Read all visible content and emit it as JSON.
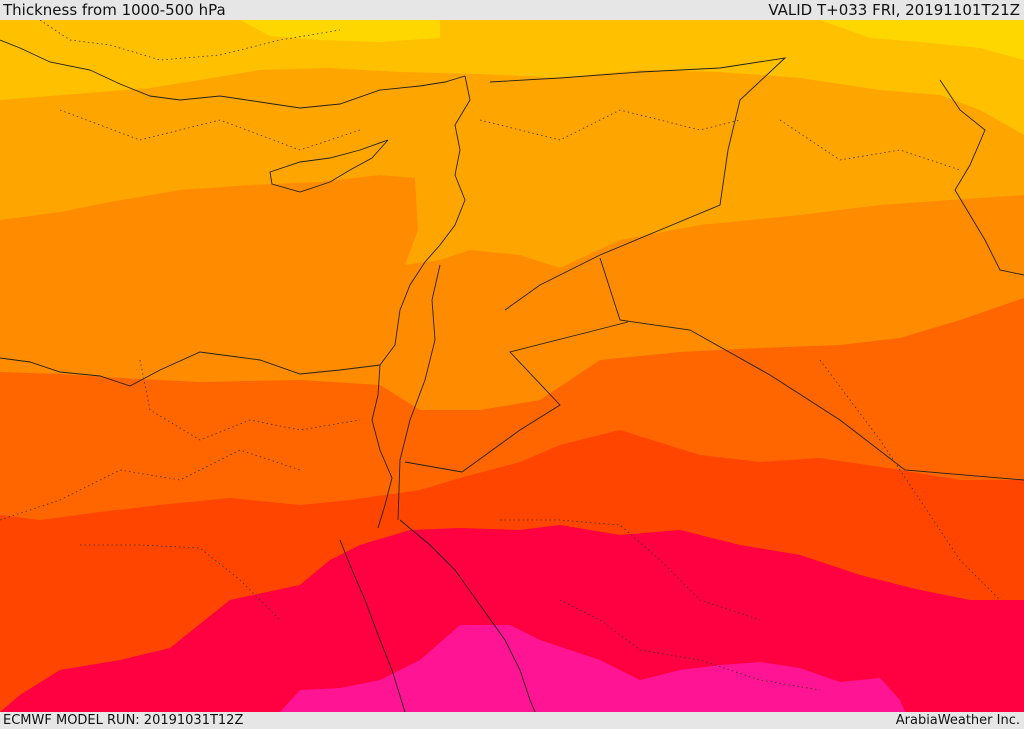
{
  "header": {
    "title": "Thickness from 1000-500 hPa",
    "valid": "VALID T+033 FRI, 20191101T21Z"
  },
  "footer": {
    "model_run": "ECMWF MODEL RUN: 20191031T12Z",
    "credit": "ArabiaWeather Inc."
  },
  "map": {
    "field": "1000-500 hPa thickness",
    "colors": {
      "yellow": "#ffd700",
      "yellow_orange": "#ffc000",
      "orange": "#ffa500",
      "deep_orange": "#ff8c00",
      "orange_red": "#ff6600",
      "red_orange": "#ff4500",
      "crimson": "#ff0040",
      "magenta": "#ff1493"
    }
  }
}
